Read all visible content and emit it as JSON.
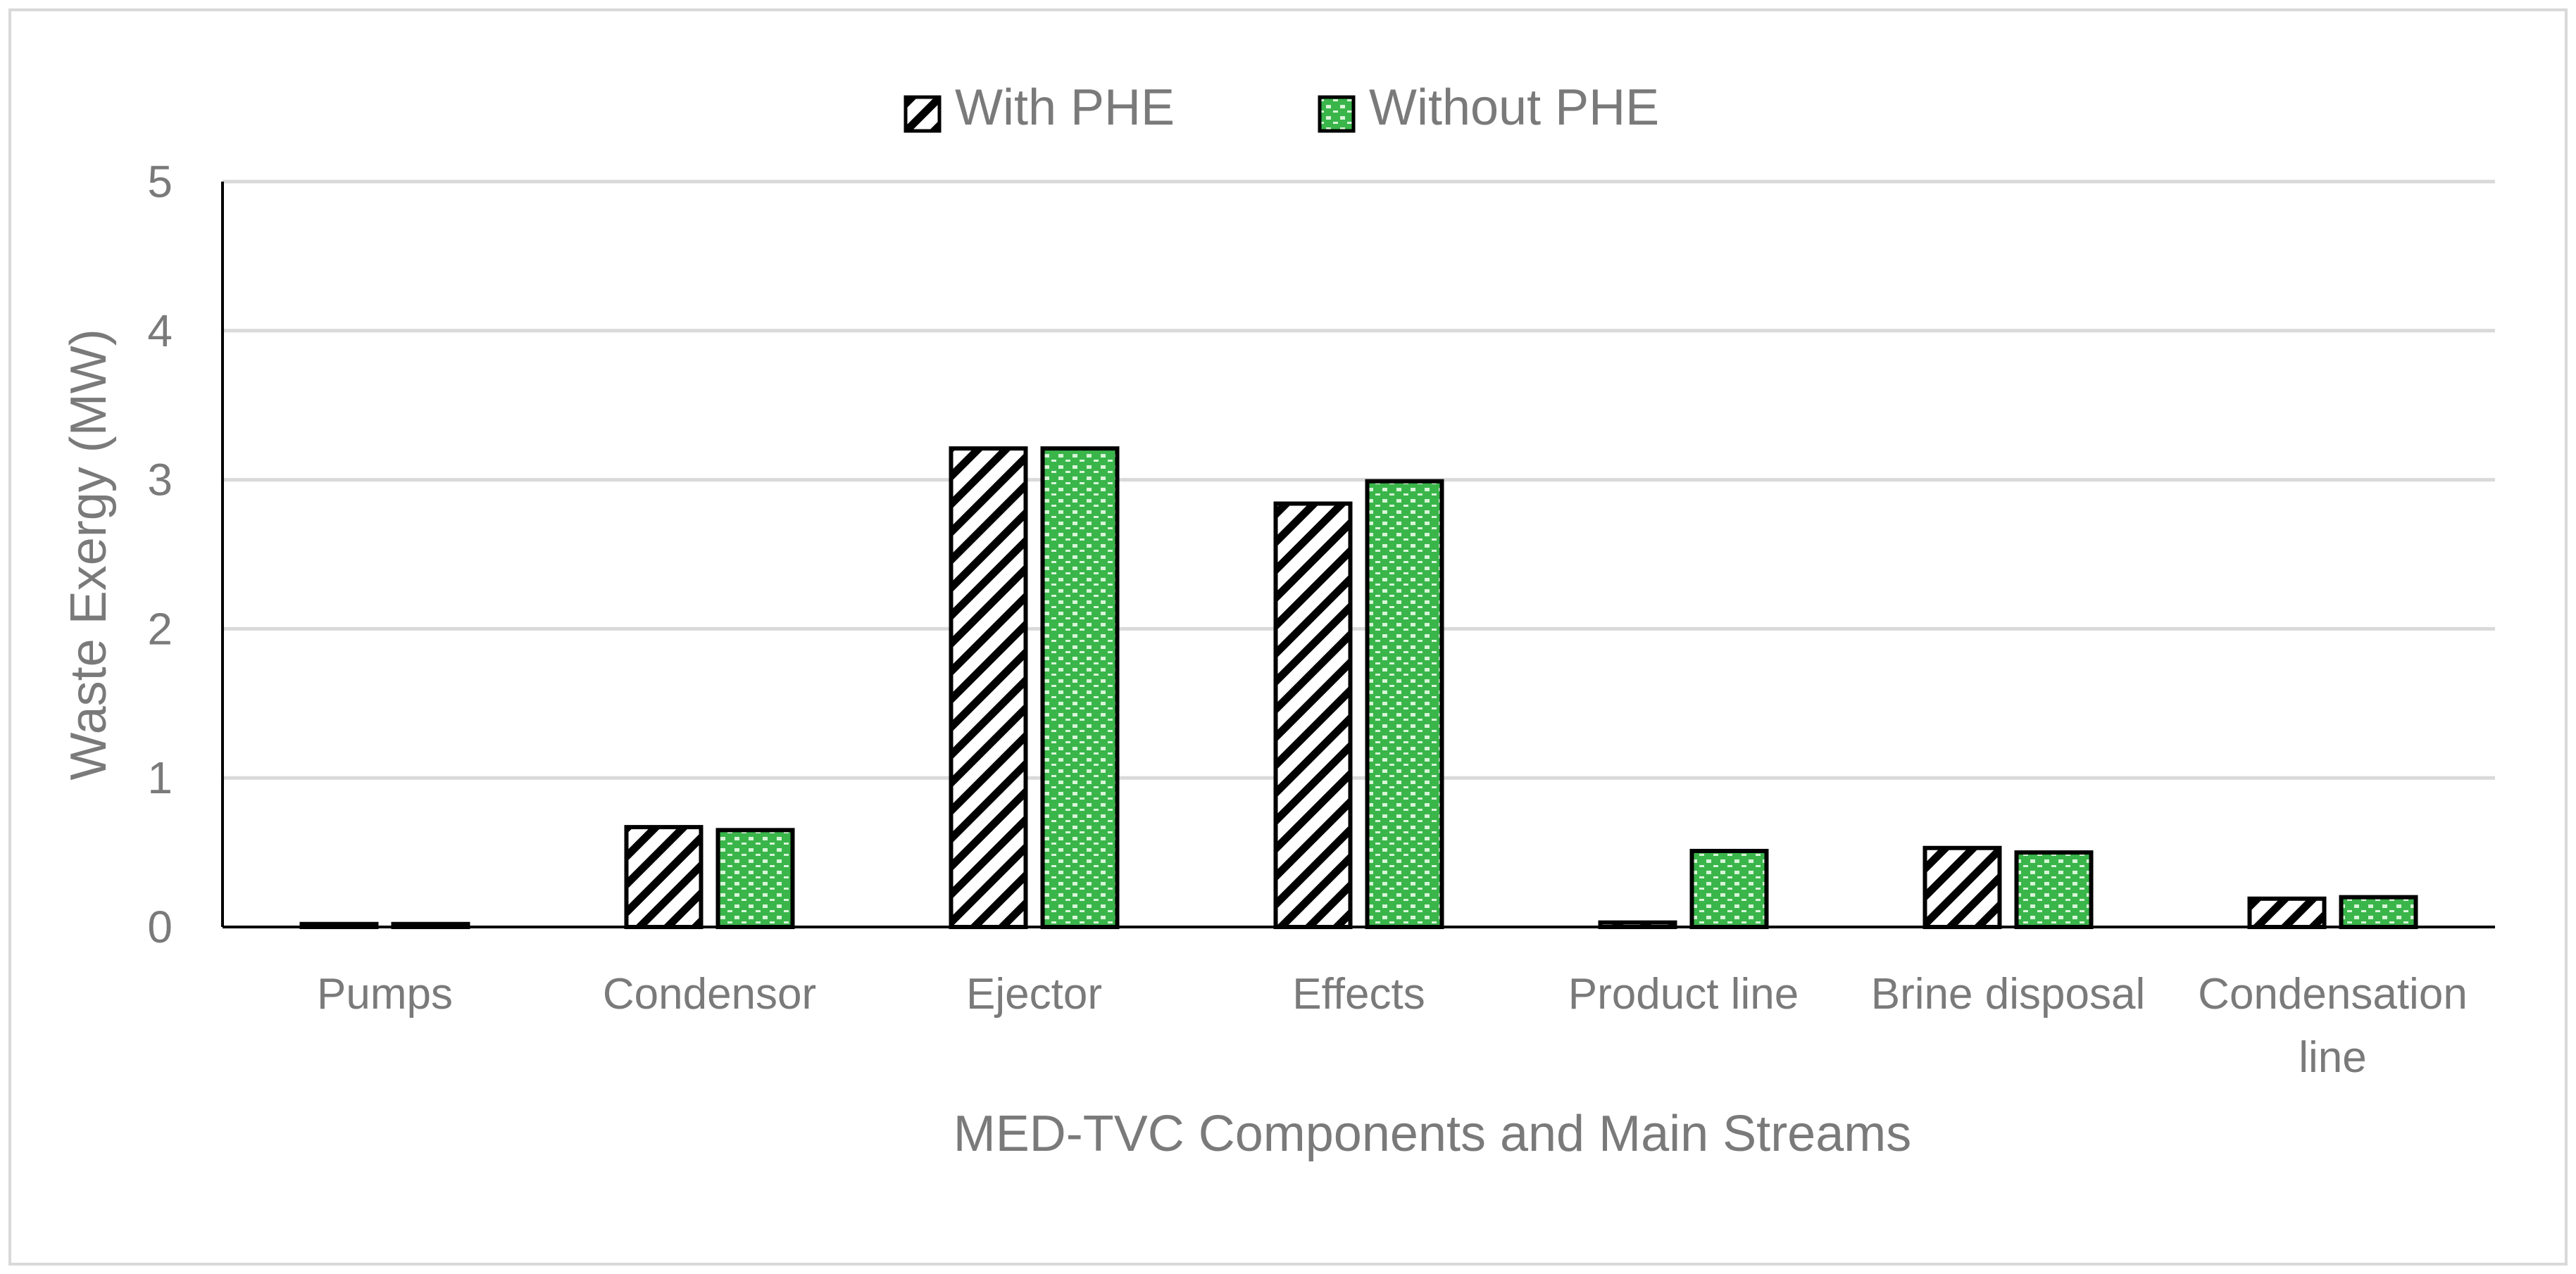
{
  "chart_data": {
    "type": "bar",
    "title": "",
    "xlabel": "MED-TVC Components and Main Streams",
    "ylabel": "Waste Exergy  (MW)",
    "ylim": [
      0,
      5
    ],
    "yticks": [
      0,
      1,
      2,
      3,
      4,
      5
    ],
    "grid": true,
    "legend_position": "top-center",
    "categories": [
      [
        "Pumps"
      ],
      [
        "Condensor"
      ],
      [
        "Ejector"
      ],
      [
        "Effects"
      ],
      [
        "Product line"
      ],
      [
        "Brine disposal"
      ],
      [
        "Condensation",
        "line"
      ]
    ],
    "series": [
      {
        "name": "With PHE",
        "pattern": "diagonal-hatch",
        "values": [
          0.02,
          0.67,
          3.21,
          2.84,
          0.03,
          0.53,
          0.19
        ]
      },
      {
        "name": "Without PHE",
        "pattern": "green-dots",
        "values": [
          0.02,
          0.65,
          3.21,
          2.99,
          0.51,
          0.5,
          0.2
        ]
      }
    ]
  },
  "colors": {
    "grid": "#d9d9d9",
    "axis": "#000000",
    "bar_outline": "#000000",
    "hatch": "#000000",
    "green_fill": "#3ab54a",
    "green_dot": "#d8f5d8",
    "text": "#7a7a7a",
    "frame": "#d9d9d9"
  }
}
